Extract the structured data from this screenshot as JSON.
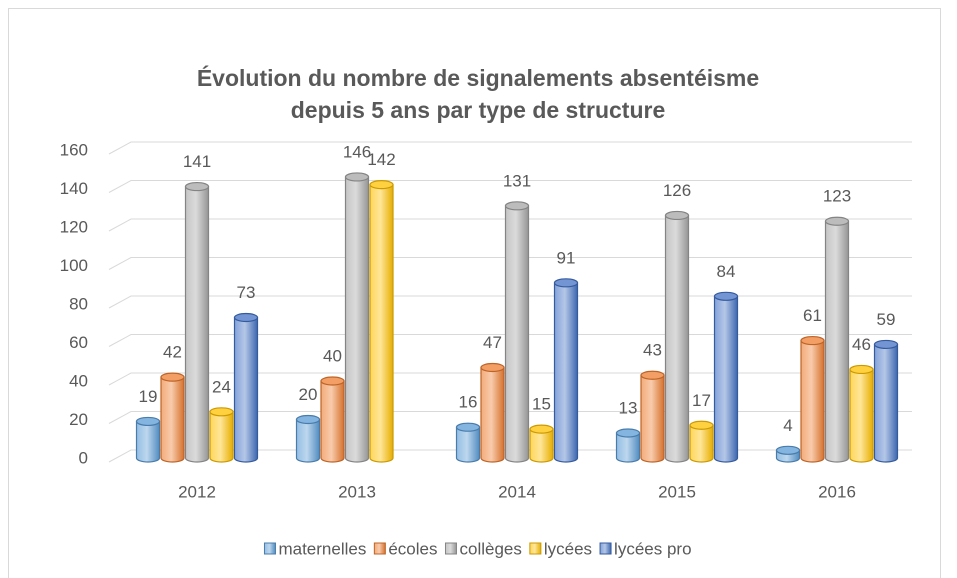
{
  "chart_data": {
    "type": "bar3d",
    "title": [
      "Évolution du nombre de signalements absentéisme",
      "depuis 5 ans par type de structure"
    ],
    "categories": [
      "2012",
      "2013",
      "2014",
      "2015",
      "2016"
    ],
    "series": [
      {
        "name": "maternelles",
        "color": "#5b9bd5",
        "values": [
          19,
          20,
          16,
          13,
          4
        ]
      },
      {
        "name": "écoles",
        "color": "#ed7d31",
        "values": [
          42,
          40,
          47,
          43,
          61
        ]
      },
      {
        "name": "collèges",
        "color": "#a5a5a5",
        "values": [
          141,
          146,
          131,
          126,
          123
        ]
      },
      {
        "name": "lycées",
        "color": "#ffc000",
        "values": [
          24,
          142,
          15,
          17,
          46
        ]
      },
      {
        "name": "lycées pro",
        "color": "#4472c4",
        "values": [
          73,
          null,
          91,
          84,
          59
        ]
      }
    ],
    "ylim": [
      0,
      160
    ],
    "yticks": [
      0,
      20,
      40,
      60,
      80,
      100,
      120,
      140,
      160
    ],
    "grid": true,
    "legend": "bottom"
  }
}
